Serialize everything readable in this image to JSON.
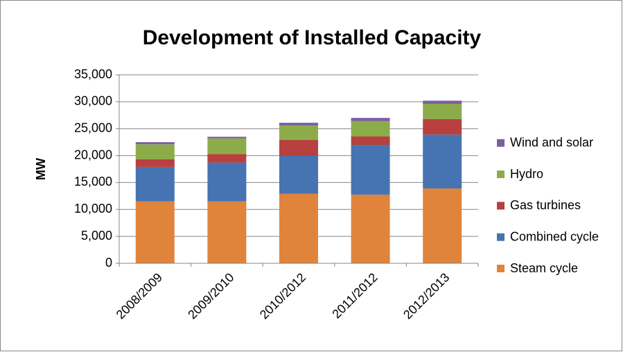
{
  "chart_data": {
    "type": "stacked_bar",
    "title": "Development of Installed Capacity",
    "y_label": "MW",
    "categories": [
      "2008/2009",
      "2009/2010",
      "2010/2012",
      "2011/2012",
      "2012/2013"
    ],
    "series": [
      {
        "name": "Steam cycle",
        "color": "#e0843b",
        "values": [
          11500,
          11500,
          12900,
          12750,
          13900
        ]
      },
      {
        "name": "Combined cycle",
        "color": "#4674b3",
        "values": [
          6400,
          7200,
          7050,
          9250,
          10000
        ]
      },
      {
        "name": "Gas turbines",
        "color": "#b8403e",
        "values": [
          1400,
          1600,
          2950,
          1550,
          2900
        ]
      },
      {
        "name": "Hydro",
        "color": "#8cac4a",
        "values": [
          2800,
          2900,
          2700,
          2850,
          2800
        ]
      },
      {
        "name": "Wind and solar",
        "color": "#7a5fa0",
        "values": [
          400,
          300,
          500,
          600,
          600
        ]
      }
    ],
    "ylim": [
      0,
      35000
    ],
    "yticks": [
      0,
      {
        "value": 5000,
        "label": "5,000"
      },
      {
        "value": 10000,
        "label": "10,000"
      },
      {
        "value": 15000,
        "label": "15,000"
      },
      {
        "value": 20000,
        "label": "20,000"
      },
      {
        "value": 25000,
        "label": "25,000"
      },
      {
        "value": 30000,
        "label": "30,000"
      },
      {
        "value": 35000,
        "label": "35,000"
      }
    ],
    "grid": true,
    "legend": "right"
  }
}
